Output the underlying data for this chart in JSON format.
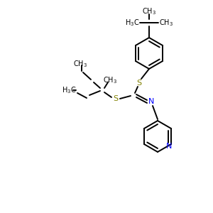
{
  "background": "#ffffff",
  "bond_color": "#000000",
  "s_color": "#808000",
  "n_color": "#0000ff",
  "line_width": 1.4,
  "font_size": 7.0,
  "figsize": [
    3.0,
    3.0
  ],
  "dpi": 100,
  "xlim": [
    0,
    300
  ],
  "ylim": [
    0,
    300
  ]
}
